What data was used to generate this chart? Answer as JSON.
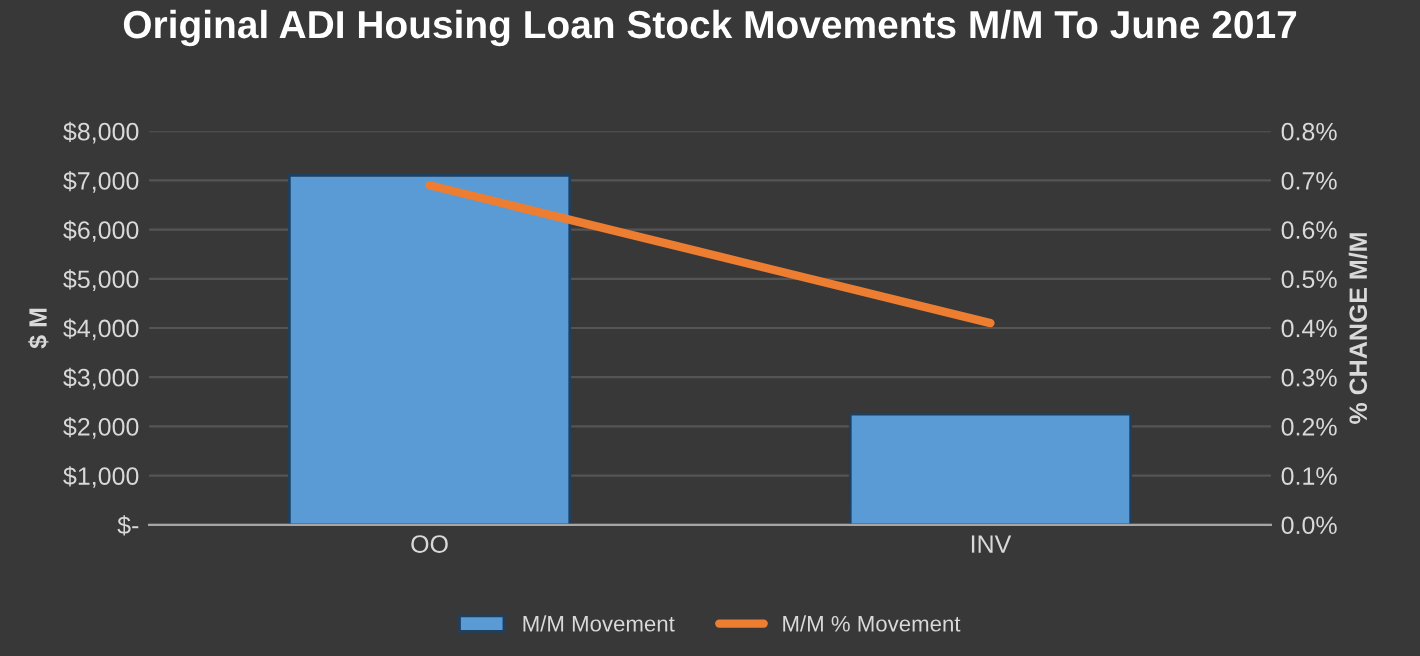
{
  "chart_data": {
    "type": "bar",
    "title": "Original ADI Housing Loan Stock Movements M/M To June 2017",
    "ylabel": "$ M",
    "y2label": "% CHANGE M/M",
    "categories": [
      "OO",
      "INV"
    ],
    "series": [
      {
        "name": "M/M Movement",
        "color": "#5b9bd5",
        "values": [
          7100,
          2250
        ]
      },
      {
        "name": "M/M % Movement",
        "type": "line",
        "axis": "y2",
        "color": "#ed7d31",
        "values": [
          0.69,
          0.41
        ]
      }
    ],
    "ylim": [
      0,
      8000
    ],
    "yticks": [
      {
        "value": 0,
        "label": "$-"
      },
      {
        "value": 1000,
        "label": "$1,000"
      },
      {
        "value": 2000,
        "label": "$2,000"
      },
      {
        "value": 3000,
        "label": "$3,000"
      },
      {
        "value": 4000,
        "label": "$4,000"
      },
      {
        "value": 5000,
        "label": "$5,000"
      },
      {
        "value": 6000,
        "label": "$6,000"
      },
      {
        "value": 7000,
        "label": "$7,000"
      },
      {
        "value": 8000,
        "label": "$8,000"
      }
    ],
    "y2lim": [
      0,
      0.8
    ],
    "y2ticks": [
      {
        "value": 0,
        "label": "0.0%"
      },
      {
        "value": 0.1,
        "label": "0.1%"
      },
      {
        "value": 0.2,
        "label": "0.2%"
      },
      {
        "value": 0.3,
        "label": "0.3%"
      },
      {
        "value": 0.4,
        "label": "0.4%"
      },
      {
        "value": 0.5,
        "label": "0.5%"
      },
      {
        "value": 0.6,
        "label": "0.6%"
      },
      {
        "value": 0.7,
        "label": "0.7%"
      },
      {
        "value": 0.8,
        "label": "0.8%"
      }
    ],
    "grid": "y",
    "legend": "bottom"
  }
}
